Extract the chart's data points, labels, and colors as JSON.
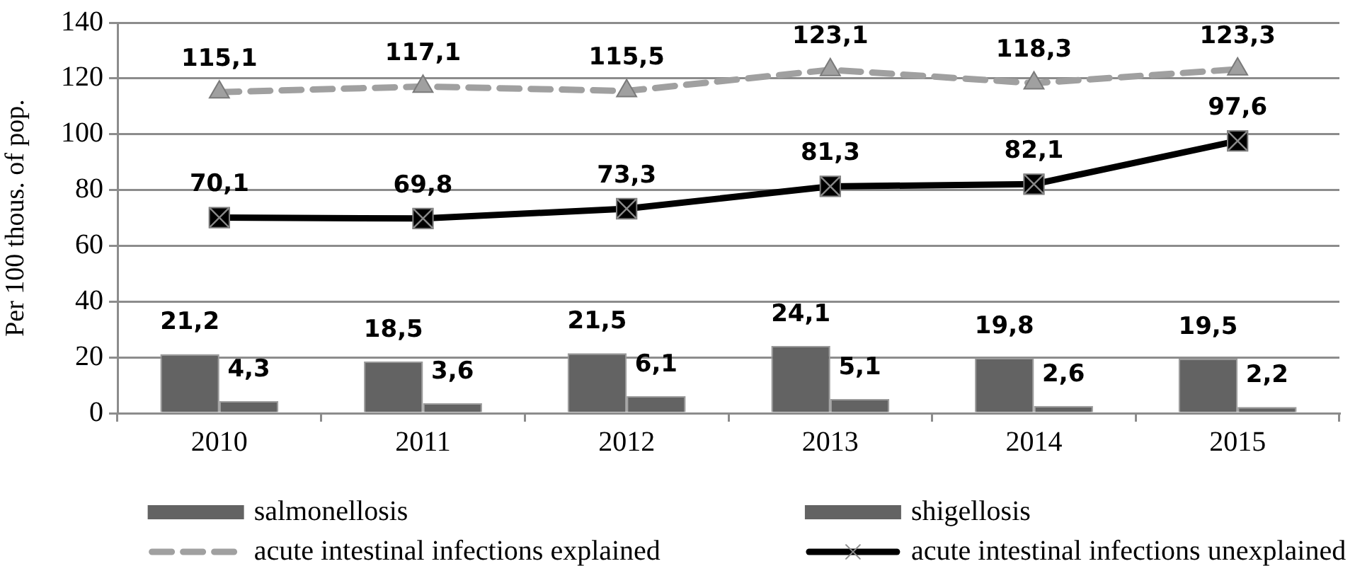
{
  "chart_data": {
    "type": "bar",
    "categories": [
      "2010",
      "2011",
      "2012",
      "2013",
      "2014",
      "2015"
    ],
    "ylabel": "Per 100 thous. of pop.",
    "ylim": [
      0,
      140
    ],
    "yticks": [
      0,
      20,
      40,
      60,
      80,
      100,
      120,
      140
    ],
    "grid": "y",
    "legend": "bottom",
    "series": [
      {
        "name": "salmonellosis",
        "color": "#636363",
        "values": [
          21.2,
          18.5,
          21.5,
          24.1,
          19.8,
          19.5
        ],
        "value_labels": [
          "21,2",
          "18,5",
          "21,5",
          "24,1",
          "19,8",
          "19,5"
        ]
      },
      {
        "name": "shigellosis",
        "color": "#636363",
        "values": [
          4.3,
          3.6,
          6.1,
          5.1,
          2.6,
          2.2
        ],
        "value_labels": [
          "4,3",
          "3,6",
          "6,1",
          "5,1",
          "2,6",
          "2,2"
        ]
      },
      {
        "name": "acute intestinal infections explained",
        "type": "line",
        "color": "#a0a0a0",
        "marker": "triangle",
        "line_style": "dashed",
        "values": [
          115.1,
          117.1,
          115.5,
          123.1,
          118.3,
          123.3
        ],
        "value_labels": [
          "115,1",
          "117,1",
          "115,5",
          "123,1",
          "118,3",
          "123,3"
        ]
      },
      {
        "name": "acute intestinal infections unexplained",
        "type": "line",
        "color": "#000000",
        "marker": "square",
        "line_style": "solid",
        "values": [
          70.1,
          69.8,
          73.3,
          81.3,
          82.1,
          97.6
        ],
        "value_labels": [
          "70,1",
          "69,8",
          "73,3",
          "81,3",
          "82,1",
          "97,6"
        ]
      }
    ]
  }
}
